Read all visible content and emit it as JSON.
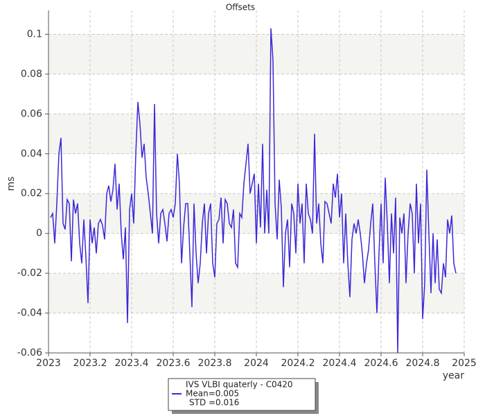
{
  "chart_data": {
    "type": "line",
    "title": "Offsets",
    "xlabel": "year",
    "ylabel": "ms",
    "x": [
      2023.01,
      2023.02,
      2023.03,
      2023.04,
      2023.05,
      2023.06,
      2023.07,
      2023.08,
      2023.09,
      2023.1,
      2023.11,
      2023.12,
      2023.13,
      2023.14,
      2023.15,
      2023.16,
      2023.17,
      2023.18,
      2023.19,
      2023.2,
      2023.21,
      2023.22,
      2023.23,
      2023.24,
      2023.25,
      2023.26,
      2023.27,
      2023.28,
      2023.29,
      2023.3,
      2023.31,
      2023.32,
      2023.33,
      2023.34,
      2023.35,
      2023.36,
      2023.37,
      2023.38,
      2023.39,
      2023.4,
      2023.41,
      2023.42,
      2023.43,
      2023.44,
      2023.45,
      2023.46,
      2023.47,
      2023.48,
      2023.49,
      2023.5,
      2023.51,
      2023.52,
      2023.53,
      2023.54,
      2023.55,
      2023.56,
      2023.57,
      2023.58,
      2023.59,
      2023.6,
      2023.61,
      2023.62,
      2023.63,
      2023.64,
      2023.65,
      2023.66,
      2023.67,
      2023.68,
      2023.69,
      2023.7,
      2023.71,
      2023.72,
      2023.73,
      2023.74,
      2023.75,
      2023.76,
      2023.77,
      2023.78,
      2023.79,
      2023.8,
      2023.81,
      2023.82,
      2023.83,
      2023.84,
      2023.85,
      2023.86,
      2023.87,
      2023.88,
      2023.89,
      2023.9,
      2023.91,
      2023.92,
      2023.93,
      2023.94,
      2023.95,
      2023.96,
      2023.97,
      2023.98,
      2023.99,
      2024,
      2024.01,
      2024.02,
      2024.03,
      2024.04,
      2024.05,
      2024.06,
      2024.07,
      2024.08,
      2024.09,
      2024.1,
      2024.11,
      2024.12,
      2024.13,
      2024.14,
      2024.15,
      2024.16,
      2024.17,
      2024.18,
      2024.19,
      2024.2,
      2024.21,
      2024.22,
      2024.23,
      2024.24,
      2024.25,
      2024.26,
      2024.27,
      2024.28,
      2024.29,
      2024.3,
      2024.31,
      2024.32,
      2024.33,
      2024.34,
      2024.35,
      2024.36,
      2024.37,
      2024.38,
      2024.39,
      2024.4,
      2024.41,
      2024.42,
      2024.43,
      2024.44,
      2024.45,
      2024.46,
      2024.47,
      2024.48,
      2024.49,
      2024.5,
      2024.51,
      2024.52,
      2024.53,
      2024.54,
      2024.55,
      2024.56,
      2024.57,
      2024.58,
      2024.59,
      2024.6,
      2024.61,
      2024.62,
      2024.63,
      2024.64,
      2024.65,
      2024.66,
      2024.67,
      2024.68,
      2024.69,
      2024.7,
      2024.71,
      2024.72,
      2024.73,
      2024.74,
      2024.75,
      2024.76,
      2024.77,
      2024.78,
      2024.79,
      2024.8,
      2024.81,
      2024.82,
      2024.83,
      2024.84,
      2024.85,
      2024.86,
      2024.87,
      2024.88,
      2024.89,
      2024.9,
      2024.91,
      2024.92,
      2024.93,
      2024.94,
      2024.95,
      2024.96
    ],
    "series": [
      {
        "name": "IVS VLBI quaterly - C0420",
        "color": "#3a28d8",
        "values": [
          0.008,
          0.01,
          -0.005,
          0.015,
          0.04,
          0.048,
          0.005,
          0.002,
          0.017,
          0.015,
          -0.014,
          0.017,
          0.01,
          0.015,
          -0.005,
          -0.015,
          0.007,
          -0.012,
          -0.035,
          0.007,
          -0.005,
          0.003,
          -0.01,
          0.005,
          0.007,
          0.004,
          -0.003,
          0.02,
          0.024,
          0.016,
          0.022,
          0.035,
          0.012,
          0.025,
          0,
          -0.013,
          0.003,
          -0.045,
          0.012,
          0.02,
          0.005,
          0.04,
          0.066,
          0.055,
          0.038,
          0.045,
          0.028,
          0.02,
          0.01,
          0,
          0.065,
          0.01,
          -0.005,
          0.01,
          0.012,
          0.005,
          -0.004,
          0.01,
          0.012,
          0.008,
          0.015,
          0.04,
          0.025,
          -0.015,
          0.003,
          0.015,
          0.015,
          -0.01,
          -0.037,
          0.015,
          -0.01,
          -0.025,
          -0.015,
          0.005,
          0.015,
          -0.01,
          0.01,
          0.015,
          -0.015,
          -0.022,
          0.005,
          0.007,
          0.018,
          -0.005,
          0.017,
          0.015,
          0.005,
          0.003,
          0.012,
          -0.015,
          -0.017,
          0.01,
          0.008,
          0.025,
          0.035,
          0.045,
          0.02,
          0.025,
          0.03,
          -0.005,
          0.025,
          0.003,
          0.045,
          0,
          0.022,
          0,
          0.103,
          0.087,
          0.015,
          -0.003,
          0.027,
          0.013,
          -0.027,
          0,
          0.007,
          -0.017,
          0.015,
          0.01,
          -0.01,
          0.025,
          0.005,
          0.015,
          -0.015,
          0.025,
          0.01,
          0.007,
          0,
          0.05,
          0.005,
          0.015,
          -0.005,
          -0.015,
          0.016,
          0.015,
          0.01,
          0.005,
          0.025,
          0.018,
          0.03,
          0.008,
          0.02,
          -0.015,
          0.01,
          -0.015,
          -0.032,
          -0.003,
          0.005,
          0,
          0.007,
          0,
          -0.01,
          -0.025,
          -0.015,
          -0.008,
          0.005,
          0.015,
          -0.015,
          -0.04,
          -0.01,
          0.015,
          -0.015,
          0.028,
          0.005,
          -0.025,
          0.01,
          -0.01,
          0.018,
          -0.06,
          0.008,
          0,
          0.01,
          -0.025,
          0,
          0.015,
          0.01,
          -0.02,
          0.025,
          -0.005,
          0.015,
          -0.043,
          -0.025,
          0.032,
          0,
          -0.03,
          0,
          -0.025,
          -0.003,
          -0.028,
          -0.03,
          -0.015,
          -0.022,
          0.007,
          0,
          0.009,
          -0.015,
          -0.02
        ]
      }
    ],
    "annotations": [
      "Mean=0.005",
      "STD =0.016"
    ],
    "xlim": [
      2023,
      2025
    ],
    "xticks": [
      2023,
      2023.2,
      2023.4,
      2023.6,
      2023.8,
      2024,
      2024.2,
      2024.4,
      2024.6,
      2024.8,
      2025
    ],
    "ylim": [
      -0.06,
      0.112
    ],
    "yticks": [
      -0.06,
      -0.04,
      -0.02,
      0,
      0.02,
      0.04,
      0.06,
      0.08,
      0.1
    ],
    "grid": true
  }
}
